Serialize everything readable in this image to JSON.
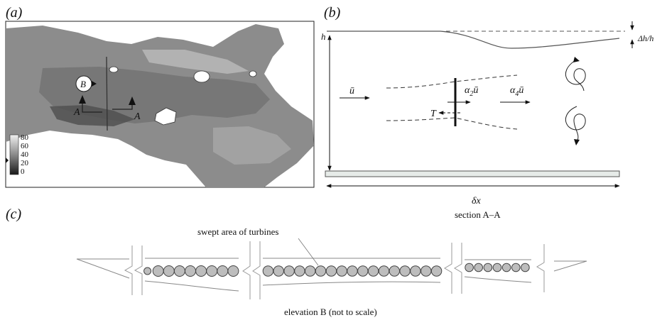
{
  "panels": {
    "a": {
      "label": "(a)"
    },
    "b": {
      "label": "(b)"
    },
    "c": {
      "label": "(c)"
    }
  },
  "map": {
    "marker_b": "B",
    "section_start": "A",
    "section_end": "A",
    "legend_ticks": [
      "80",
      "60",
      "40",
      "20",
      "0"
    ]
  },
  "section": {
    "depth_label": "h",
    "drop_label": "Δh/h",
    "upstream_velocity": "ū",
    "bypass_velocity_coef": "α",
    "bypass_velocity_sub": "2",
    "bypass_velocity_sym": "ū",
    "wake_velocity_coef": "α",
    "wake_velocity_sub": "4",
    "wake_velocity_sym": "ū",
    "thrust_label": "T",
    "length_label": "δx",
    "caption": "section A–A"
  },
  "elevation": {
    "annotation": "swept area of turbines",
    "caption": "elevation B (not to scale)",
    "row1_count": 9,
    "row2_count": 17,
    "row3_count": 7
  },
  "colors": {
    "water_fill": "#9a9a9a",
    "land_fill": "#ffffff",
    "turbine_fill": "#bdbdbd",
    "bed_fill": "#e6ebe8"
  }
}
